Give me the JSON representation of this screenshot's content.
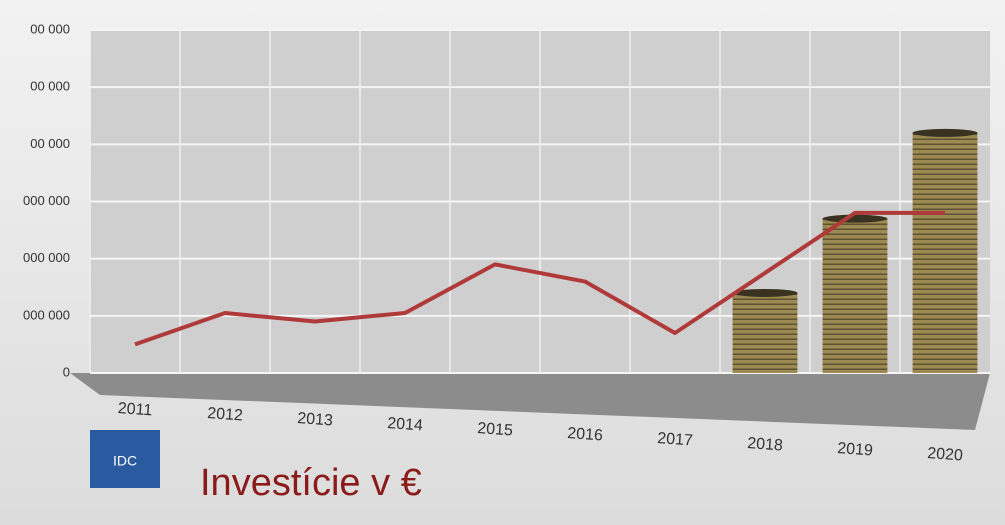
{
  "chart_data": {
    "type": "line",
    "title": "Investície v €",
    "logo": "IDC",
    "categories": [
      "2011",
      "2012",
      "2013",
      "2014",
      "2015",
      "2016",
      "2017",
      "2018",
      "2019",
      "2020"
    ],
    "series": [
      {
        "name": "Investície",
        "type": "line",
        "color": "#b03a3a",
        "values": [
          500000,
          1050000,
          900000,
          1050000,
          1900000,
          1600000,
          700000,
          1750000,
          2800000,
          2800000
        ]
      },
      {
        "name": "Mince",
        "type": "bar",
        "color": "#8a7a4a",
        "values": [
          null,
          null,
          null,
          null,
          null,
          null,
          null,
          1400000,
          2700000,
          4200000
        ]
      }
    ],
    "ylim": [
      0,
      6000000
    ],
    "yticks": [
      0,
      {
        "value": 1000000,
        "label": "000 000"
      },
      {
        "value": 2000000,
        "label": "000 000"
      },
      {
        "value": 3000000,
        "label": "000 000"
      },
      {
        "value": 4000000,
        "label": "00 000"
      },
      {
        "value": 5000000,
        "label": "00 000"
      },
      {
        "value": 6000000,
        "label": "00 000"
      }
    ],
    "grid": true
  }
}
